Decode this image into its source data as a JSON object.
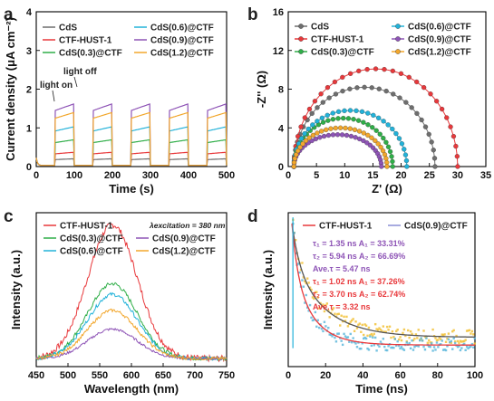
{
  "panels": {
    "a": {
      "letter": "a"
    },
    "b": {
      "letter": "b"
    },
    "c": {
      "letter": "c",
      "annotation": "λexcitation = 380 nm"
    },
    "d": {
      "letter": "d"
    }
  },
  "chart_data": [
    {
      "id": "a",
      "type": "line",
      "title": "",
      "xlabel": "Time (s)",
      "ylabel": "Current density (μA cm⁻²)",
      "xlim": [
        0,
        500
      ],
      "ylim": [
        0,
        4
      ],
      "xticks": [
        0,
        100,
        200,
        300,
        400,
        500
      ],
      "yticks": [
        0,
        1,
        2,
        3,
        4
      ],
      "legend_position": "top",
      "annotations": [
        "light on",
        "light off"
      ],
      "light_on_intervals": [
        [
          50,
          100
        ],
        [
          150,
          200
        ],
        [
          250,
          300
        ],
        [
          350,
          400
        ],
        [
          450,
          500
        ]
      ],
      "series": [
        {
          "name": "CdS",
          "color": "#6e6e6e",
          "on": 0.18,
          "off": 0.03
        },
        {
          "name": "CTF-HUST-1",
          "color": "#e8383b",
          "on": 0.33,
          "off": 0.03
        },
        {
          "name": "CdS(0.3)@CTF",
          "color": "#2fae48",
          "on": 0.62,
          "off": 0.03
        },
        {
          "name": "CdS(0.6)@CTF",
          "color": "#22b2d9",
          "on": 0.92,
          "off": 0.03
        },
        {
          "name": "CdS(0.9)@CTF",
          "color": "#8e54b6",
          "on": 1.45,
          "off": 0.03
        },
        {
          "name": "CdS(1.2)@CTF",
          "color": "#f2a72c",
          "on": 1.25,
          "off": 0.03
        }
      ]
    },
    {
      "id": "b",
      "type": "scatter",
      "title": "",
      "xlabel": "Z' (Ω)",
      "ylabel": "-Z'' (Ω)",
      "xlim": [
        0,
        35
      ],
      "ylim": [
        0,
        16
      ],
      "xticks": [
        0,
        5,
        10,
        15,
        20,
        25,
        30,
        35
      ],
      "yticks": [
        0,
        4,
        8,
        12,
        16
      ],
      "legend_position": "top",
      "series": [
        {
          "name": "CdS",
          "color": "#6e6e6e",
          "x_start": 1.0,
          "x_end": 26.0,
          "peak": 8.2
        },
        {
          "name": "CTF-HUST-1",
          "color": "#e8383b",
          "x_start": 1.0,
          "x_end": 30.0,
          "peak": 10.1
        },
        {
          "name": "CdS(0.3)@CTF",
          "color": "#2fae48",
          "x_start": 1.0,
          "x_end": 18.5,
          "peak": 5.0
        },
        {
          "name": "CdS(0.6)@CTF",
          "color": "#22b2d9",
          "x_start": 1.0,
          "x_end": 21.0,
          "peak": 5.8
        },
        {
          "name": "CdS(0.9)@CTF",
          "color": "#8e54b6",
          "x_start": 1.0,
          "x_end": 16.5,
          "peak": 3.3
        },
        {
          "name": "CdS(1.2)@CTF",
          "color": "#f2a72c",
          "x_start": 1.0,
          "x_end": 17.5,
          "peak": 4.0
        }
      ]
    },
    {
      "id": "c",
      "type": "line",
      "title": "",
      "xlabel": "Wavelength (nm)",
      "ylabel": "Intensity (a.u.)",
      "xlim": [
        450,
        750
      ],
      "xticks": [
        450,
        500,
        550,
        600,
        650,
        700,
        750
      ],
      "legend_position": "top",
      "peak_wavelength": 570,
      "series": [
        {
          "name": "CTF-HUST-1",
          "color": "#e8383b",
          "peak": 1.0
        },
        {
          "name": "CdS(0.3)@CTF",
          "color": "#2fae48",
          "peak": 0.56
        },
        {
          "name": "CdS(0.6)@CTF",
          "color": "#22b2d9",
          "peak": 0.48
        },
        {
          "name": "CdS(0.9)@CTF",
          "color": "#8e54b6",
          "peak": 0.22
        },
        {
          "name": "CdS(1.2)@CTF",
          "color": "#f2a72c",
          "peak": 0.36
        }
      ]
    },
    {
      "id": "d",
      "type": "scatter",
      "title": "",
      "xlabel": "Time (ns)",
      "ylabel": "Intensity (a.u.)",
      "xlim": [
        0,
        100
      ],
      "xticks": [
        0,
        20,
        40,
        60,
        80,
        100
      ],
      "legend_position": "top",
      "series": [
        {
          "name": "CTF-HUST-1",
          "color": "#e8383b",
          "fit_color": "#e8383b",
          "scatter_color": "#5fb8dc"
        },
        {
          "name": "CdS(0.9)@CTF",
          "color": "#8a8fd6",
          "fit_color": "#555555",
          "scatter_color": "#f2c23a"
        }
      ],
      "fit_parameters": [
        {
          "color": "#8e54b6",
          "lines": [
            "τ₁ = 1.35 ns  A₁ = 33.31%",
            "τ₂ = 5.94 ns  A₂ = 66.69%",
            "Ave.τ = 5.47 ns"
          ]
        },
        {
          "color": "#e8383b",
          "lines": [
            "τ₁ = 1.02 ns  A₁ = 37.26%",
            "τ₂ = 3.70 ns  A₂ = 62.74%",
            "Ave.τ = 3.32 ns"
          ]
        }
      ]
    }
  ]
}
